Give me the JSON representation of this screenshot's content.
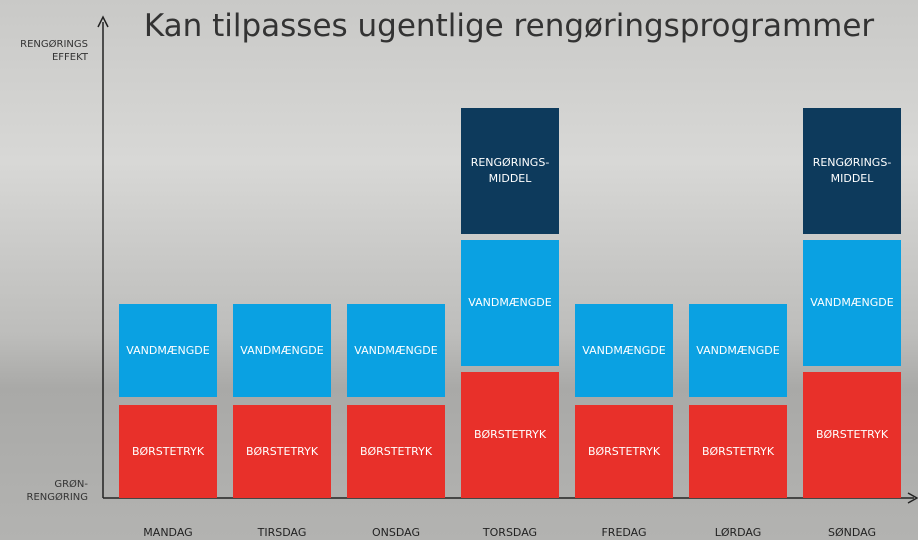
{
  "title": "Kan tilpasses ugentlige rengøringsprogrammer",
  "y_axis": {
    "top_label": "RENGØRINGS\nEFFEKT",
    "bottom_label": "GRØN-\nRENGØRING"
  },
  "days": [
    {
      "name": "MANDAG",
      "segments": [
        "BØRSTETRYK",
        "VANDMÆNGDE"
      ]
    },
    {
      "name": "TIRSDAG",
      "segments": [
        "BØRSTETRYK",
        "VANDMÆNGDE"
      ]
    },
    {
      "name": "ONSDAG",
      "segments": [
        "BØRSTETRYK",
        "VANDMÆNGDE"
      ]
    },
    {
      "name": "TORSDAG",
      "segments": [
        "BØRSTETRYK",
        "VANDMÆNGDE",
        "RENGØRINGS-\nMIDDEL"
      ]
    },
    {
      "name": "FREDAG",
      "segments": [
        "BØRSTETRYK",
        "VANDMÆNGDE"
      ]
    },
    {
      "name": "LØRDAG",
      "segments": [
        "BØRSTETRYK",
        "VANDMÆNGDE"
      ]
    },
    {
      "name": "SØNDAG",
      "segments": [
        "BØRSTETRYK",
        "VANDMÆNGDE",
        "RENGØRINGS-\nMIDDEL"
      ]
    }
  ]
}
